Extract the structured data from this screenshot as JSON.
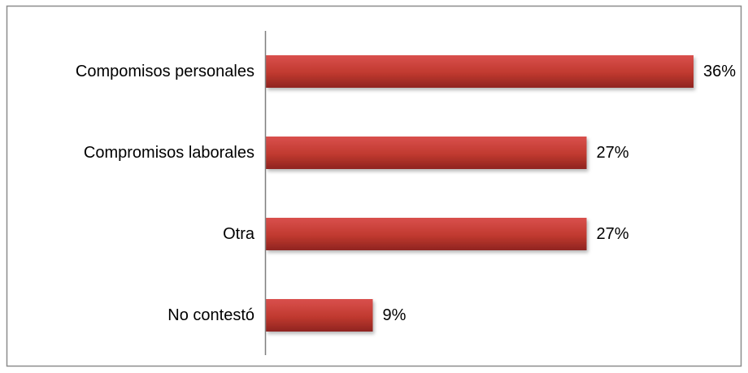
{
  "chart_data": {
    "type": "bar",
    "orientation": "horizontal",
    "categories": [
      "Compomisos personales",
      "Compromisos laborales",
      "Otra",
      "No contestó"
    ],
    "values": [
      36,
      27,
      27,
      9
    ],
    "value_labels": [
      "36%",
      "27%",
      "27%",
      "9%"
    ],
    "unit": "%",
    "xlim": [
      0,
      36
    ],
    "grid": false,
    "legend": "none",
    "title": "",
    "xlabel": "",
    "ylabel": ""
  },
  "colors": {
    "bar_top": "#d9504d",
    "bar_mid": "#c0392f",
    "bar_bottom": "#8f2420",
    "axis": "#7f7f7f",
    "frame": "#8c8c8c",
    "text": "#000000"
  }
}
